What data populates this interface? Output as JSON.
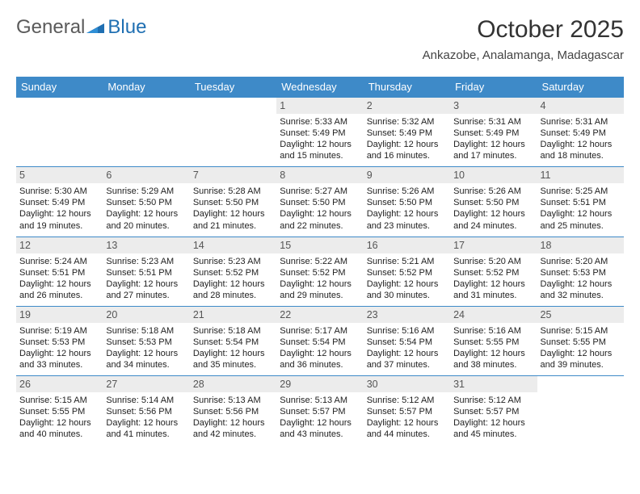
{
  "logo": {
    "text1": "General",
    "text2": "Blue"
  },
  "title": "October 2025",
  "location": "Ankazobe, Analamanga, Madagascar",
  "colors": {
    "header_bar": "#3e8ac8",
    "daynum_bg": "#ececec",
    "logo_gray": "#5a5a5a",
    "logo_blue": "#1f6fb2"
  },
  "dayheads": [
    "Sunday",
    "Monday",
    "Tuesday",
    "Wednesday",
    "Thursday",
    "Friday",
    "Saturday"
  ],
  "weeks": [
    [
      {
        "n": "",
        "sr": "",
        "ss": "",
        "dl1": "",
        "dl2": ""
      },
      {
        "n": "",
        "sr": "",
        "ss": "",
        "dl1": "",
        "dl2": ""
      },
      {
        "n": "",
        "sr": "",
        "ss": "",
        "dl1": "",
        "dl2": ""
      },
      {
        "n": "1",
        "sr": "Sunrise: 5:33 AM",
        "ss": "Sunset: 5:49 PM",
        "dl1": "Daylight: 12 hours",
        "dl2": "and 15 minutes."
      },
      {
        "n": "2",
        "sr": "Sunrise: 5:32 AM",
        "ss": "Sunset: 5:49 PM",
        "dl1": "Daylight: 12 hours",
        "dl2": "and 16 minutes."
      },
      {
        "n": "3",
        "sr": "Sunrise: 5:31 AM",
        "ss": "Sunset: 5:49 PM",
        "dl1": "Daylight: 12 hours",
        "dl2": "and 17 minutes."
      },
      {
        "n": "4",
        "sr": "Sunrise: 5:31 AM",
        "ss": "Sunset: 5:49 PM",
        "dl1": "Daylight: 12 hours",
        "dl2": "and 18 minutes."
      }
    ],
    [
      {
        "n": "5",
        "sr": "Sunrise: 5:30 AM",
        "ss": "Sunset: 5:49 PM",
        "dl1": "Daylight: 12 hours",
        "dl2": "and 19 minutes."
      },
      {
        "n": "6",
        "sr": "Sunrise: 5:29 AM",
        "ss": "Sunset: 5:50 PM",
        "dl1": "Daylight: 12 hours",
        "dl2": "and 20 minutes."
      },
      {
        "n": "7",
        "sr": "Sunrise: 5:28 AM",
        "ss": "Sunset: 5:50 PM",
        "dl1": "Daylight: 12 hours",
        "dl2": "and 21 minutes."
      },
      {
        "n": "8",
        "sr": "Sunrise: 5:27 AM",
        "ss": "Sunset: 5:50 PM",
        "dl1": "Daylight: 12 hours",
        "dl2": "and 22 minutes."
      },
      {
        "n": "9",
        "sr": "Sunrise: 5:26 AM",
        "ss": "Sunset: 5:50 PM",
        "dl1": "Daylight: 12 hours",
        "dl2": "and 23 minutes."
      },
      {
        "n": "10",
        "sr": "Sunrise: 5:26 AM",
        "ss": "Sunset: 5:50 PM",
        "dl1": "Daylight: 12 hours",
        "dl2": "and 24 minutes."
      },
      {
        "n": "11",
        "sr": "Sunrise: 5:25 AM",
        "ss": "Sunset: 5:51 PM",
        "dl1": "Daylight: 12 hours",
        "dl2": "and 25 minutes."
      }
    ],
    [
      {
        "n": "12",
        "sr": "Sunrise: 5:24 AM",
        "ss": "Sunset: 5:51 PM",
        "dl1": "Daylight: 12 hours",
        "dl2": "and 26 minutes."
      },
      {
        "n": "13",
        "sr": "Sunrise: 5:23 AM",
        "ss": "Sunset: 5:51 PM",
        "dl1": "Daylight: 12 hours",
        "dl2": "and 27 minutes."
      },
      {
        "n": "14",
        "sr": "Sunrise: 5:23 AM",
        "ss": "Sunset: 5:52 PM",
        "dl1": "Daylight: 12 hours",
        "dl2": "and 28 minutes."
      },
      {
        "n": "15",
        "sr": "Sunrise: 5:22 AM",
        "ss": "Sunset: 5:52 PM",
        "dl1": "Daylight: 12 hours",
        "dl2": "and 29 minutes."
      },
      {
        "n": "16",
        "sr": "Sunrise: 5:21 AM",
        "ss": "Sunset: 5:52 PM",
        "dl1": "Daylight: 12 hours",
        "dl2": "and 30 minutes."
      },
      {
        "n": "17",
        "sr": "Sunrise: 5:20 AM",
        "ss": "Sunset: 5:52 PM",
        "dl1": "Daylight: 12 hours",
        "dl2": "and 31 minutes."
      },
      {
        "n": "18",
        "sr": "Sunrise: 5:20 AM",
        "ss": "Sunset: 5:53 PM",
        "dl1": "Daylight: 12 hours",
        "dl2": "and 32 minutes."
      }
    ],
    [
      {
        "n": "19",
        "sr": "Sunrise: 5:19 AM",
        "ss": "Sunset: 5:53 PM",
        "dl1": "Daylight: 12 hours",
        "dl2": "and 33 minutes."
      },
      {
        "n": "20",
        "sr": "Sunrise: 5:18 AM",
        "ss": "Sunset: 5:53 PM",
        "dl1": "Daylight: 12 hours",
        "dl2": "and 34 minutes."
      },
      {
        "n": "21",
        "sr": "Sunrise: 5:18 AM",
        "ss": "Sunset: 5:54 PM",
        "dl1": "Daylight: 12 hours",
        "dl2": "and 35 minutes."
      },
      {
        "n": "22",
        "sr": "Sunrise: 5:17 AM",
        "ss": "Sunset: 5:54 PM",
        "dl1": "Daylight: 12 hours",
        "dl2": "and 36 minutes."
      },
      {
        "n": "23",
        "sr": "Sunrise: 5:16 AM",
        "ss": "Sunset: 5:54 PM",
        "dl1": "Daylight: 12 hours",
        "dl2": "and 37 minutes."
      },
      {
        "n": "24",
        "sr": "Sunrise: 5:16 AM",
        "ss": "Sunset: 5:55 PM",
        "dl1": "Daylight: 12 hours",
        "dl2": "and 38 minutes."
      },
      {
        "n": "25",
        "sr": "Sunrise: 5:15 AM",
        "ss": "Sunset: 5:55 PM",
        "dl1": "Daylight: 12 hours",
        "dl2": "and 39 minutes."
      }
    ],
    [
      {
        "n": "26",
        "sr": "Sunrise: 5:15 AM",
        "ss": "Sunset: 5:55 PM",
        "dl1": "Daylight: 12 hours",
        "dl2": "and 40 minutes."
      },
      {
        "n": "27",
        "sr": "Sunrise: 5:14 AM",
        "ss": "Sunset: 5:56 PM",
        "dl1": "Daylight: 12 hours",
        "dl2": "and 41 minutes."
      },
      {
        "n": "28",
        "sr": "Sunrise: 5:13 AM",
        "ss": "Sunset: 5:56 PM",
        "dl1": "Daylight: 12 hours",
        "dl2": "and 42 minutes."
      },
      {
        "n": "29",
        "sr": "Sunrise: 5:13 AM",
        "ss": "Sunset: 5:57 PM",
        "dl1": "Daylight: 12 hours",
        "dl2": "and 43 minutes."
      },
      {
        "n": "30",
        "sr": "Sunrise: 5:12 AM",
        "ss": "Sunset: 5:57 PM",
        "dl1": "Daylight: 12 hours",
        "dl2": "and 44 minutes."
      },
      {
        "n": "31",
        "sr": "Sunrise: 5:12 AM",
        "ss": "Sunset: 5:57 PM",
        "dl1": "Daylight: 12 hours",
        "dl2": "and 45 minutes."
      },
      {
        "n": "",
        "sr": "",
        "ss": "",
        "dl1": "",
        "dl2": ""
      }
    ]
  ]
}
